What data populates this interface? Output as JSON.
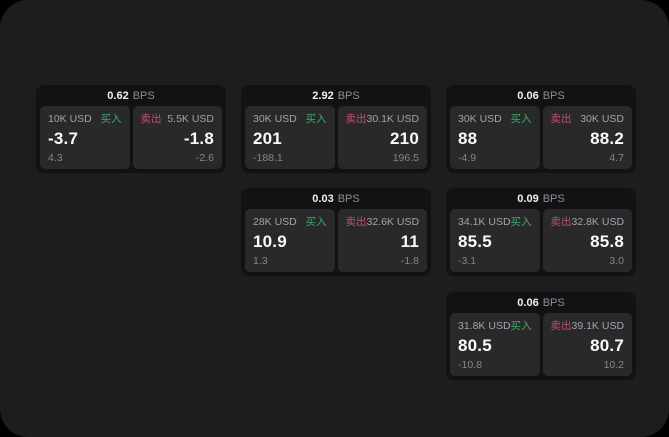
{
  "labels": {
    "bps_unit": "BPS",
    "buy": "买入",
    "sell": "卖出"
  },
  "colors": {
    "surface": "#1d1d1f",
    "card": "#121214",
    "subpanel": "#29292b",
    "text_primary": "#f0f0f0",
    "text_secondary": "#8e8e93",
    "text_amount": "#a3a3a8",
    "text_value": "#fafafa",
    "text_muted": "#85858a",
    "buy_green": "#3dab66",
    "sell_red": "#c04f6a"
  },
  "cards": [
    {
      "bps": "0.62",
      "buy": {
        "amount": "10K USD",
        "price": "-3.7",
        "delta": "4.3"
      },
      "sell": {
        "amount": "5.5K USD",
        "price": "-1.8",
        "delta": "-2.6"
      }
    },
    {
      "bps": "2.92",
      "buy": {
        "amount": "30K USD",
        "price": "201",
        "delta": "-188.1"
      },
      "sell": {
        "amount": "30.1K USD",
        "price": "210",
        "delta": "196.5"
      }
    },
    {
      "bps": "0.06",
      "buy": {
        "amount": "30K USD",
        "price": "88",
        "delta": "-4.9"
      },
      "sell": {
        "amount": "30K USD",
        "price": "88.2",
        "delta": "4.7"
      }
    },
    {
      "bps": "0.03",
      "buy": {
        "amount": "28K USD",
        "price": "10.9",
        "delta": "1.3"
      },
      "sell": {
        "amount": "32.6K USD",
        "price": "11",
        "delta": "-1.8"
      }
    },
    {
      "bps": "0.09",
      "buy": {
        "amount": "34.1K USD",
        "price": "85.5",
        "delta": "-3.1"
      },
      "sell": {
        "amount": "32.8K USD",
        "price": "85.8",
        "delta": "3.0"
      }
    },
    {
      "bps": "0.06",
      "buy": {
        "amount": "31.8K USD",
        "price": "80.5",
        "delta": "-10.8"
      },
      "sell": {
        "amount": "39.1K USD",
        "price": "80.7",
        "delta": "10.2"
      }
    }
  ]
}
